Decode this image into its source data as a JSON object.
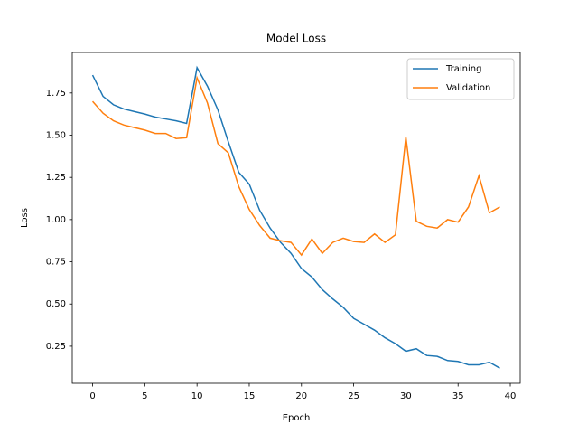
{
  "chart_data": {
    "type": "line",
    "title": "Model Loss",
    "x_label": "Epoch",
    "y_label": "Loss",
    "x": [
      0,
      1,
      2,
      3,
      4,
      5,
      6,
      7,
      8,
      9,
      10,
      11,
      12,
      13,
      14,
      15,
      16,
      17,
      18,
      19,
      20,
      21,
      22,
      23,
      24,
      25,
      26,
      27,
      28,
      29,
      30,
      31,
      32,
      33,
      34,
      35,
      36,
      37,
      38,
      39
    ],
    "series": [
      {
        "name": "Training",
        "color": "#1f77b4",
        "values": [
          1.856,
          1.73,
          1.68,
          1.655,
          1.64,
          1.625,
          1.607,
          1.596,
          1.585,
          1.57,
          1.9,
          1.79,
          1.65,
          1.46,
          1.28,
          1.21,
          1.055,
          0.95,
          0.865,
          0.8,
          0.71,
          0.66,
          0.585,
          0.53,
          0.48,
          0.415,
          0.38,
          0.345,
          0.3,
          0.265,
          0.22,
          0.235,
          0.195,
          0.19,
          0.165,
          0.16,
          0.14,
          0.14,
          0.155,
          0.12
        ]
      },
      {
        "name": "Validation",
        "color": "#ff7f0e",
        "values": [
          1.7,
          1.63,
          1.585,
          1.56,
          1.545,
          1.53,
          1.51,
          1.51,
          1.48,
          1.485,
          1.84,
          1.69,
          1.45,
          1.395,
          1.195,
          1.06,
          0.965,
          0.89,
          0.875,
          0.865,
          0.79,
          0.885,
          0.8,
          0.865,
          0.89,
          0.87,
          0.865,
          0.915,
          0.865,
          0.91,
          1.49,
          0.99,
          0.96,
          0.95,
          1.0,
          0.985,
          1.075,
          1.26,
          1.04,
          1.075
        ]
      }
    ],
    "xlim": [
      -1.95,
      40.95
    ],
    "ylim": [
      0.03,
      1.99
    ],
    "xticks": [
      0,
      5,
      10,
      15,
      20,
      25,
      30,
      35,
      40
    ],
    "yticks": [
      0.25,
      {
        "value": 0.5,
        "label": "0.50"
      },
      0.75,
      {
        "value": 1,
        "label": "1.00"
      },
      1.25,
      {
        "value": 1.5,
        "label": "1.50"
      },
      1.75
    ],
    "legend": "upper right",
    "grid": false
  }
}
